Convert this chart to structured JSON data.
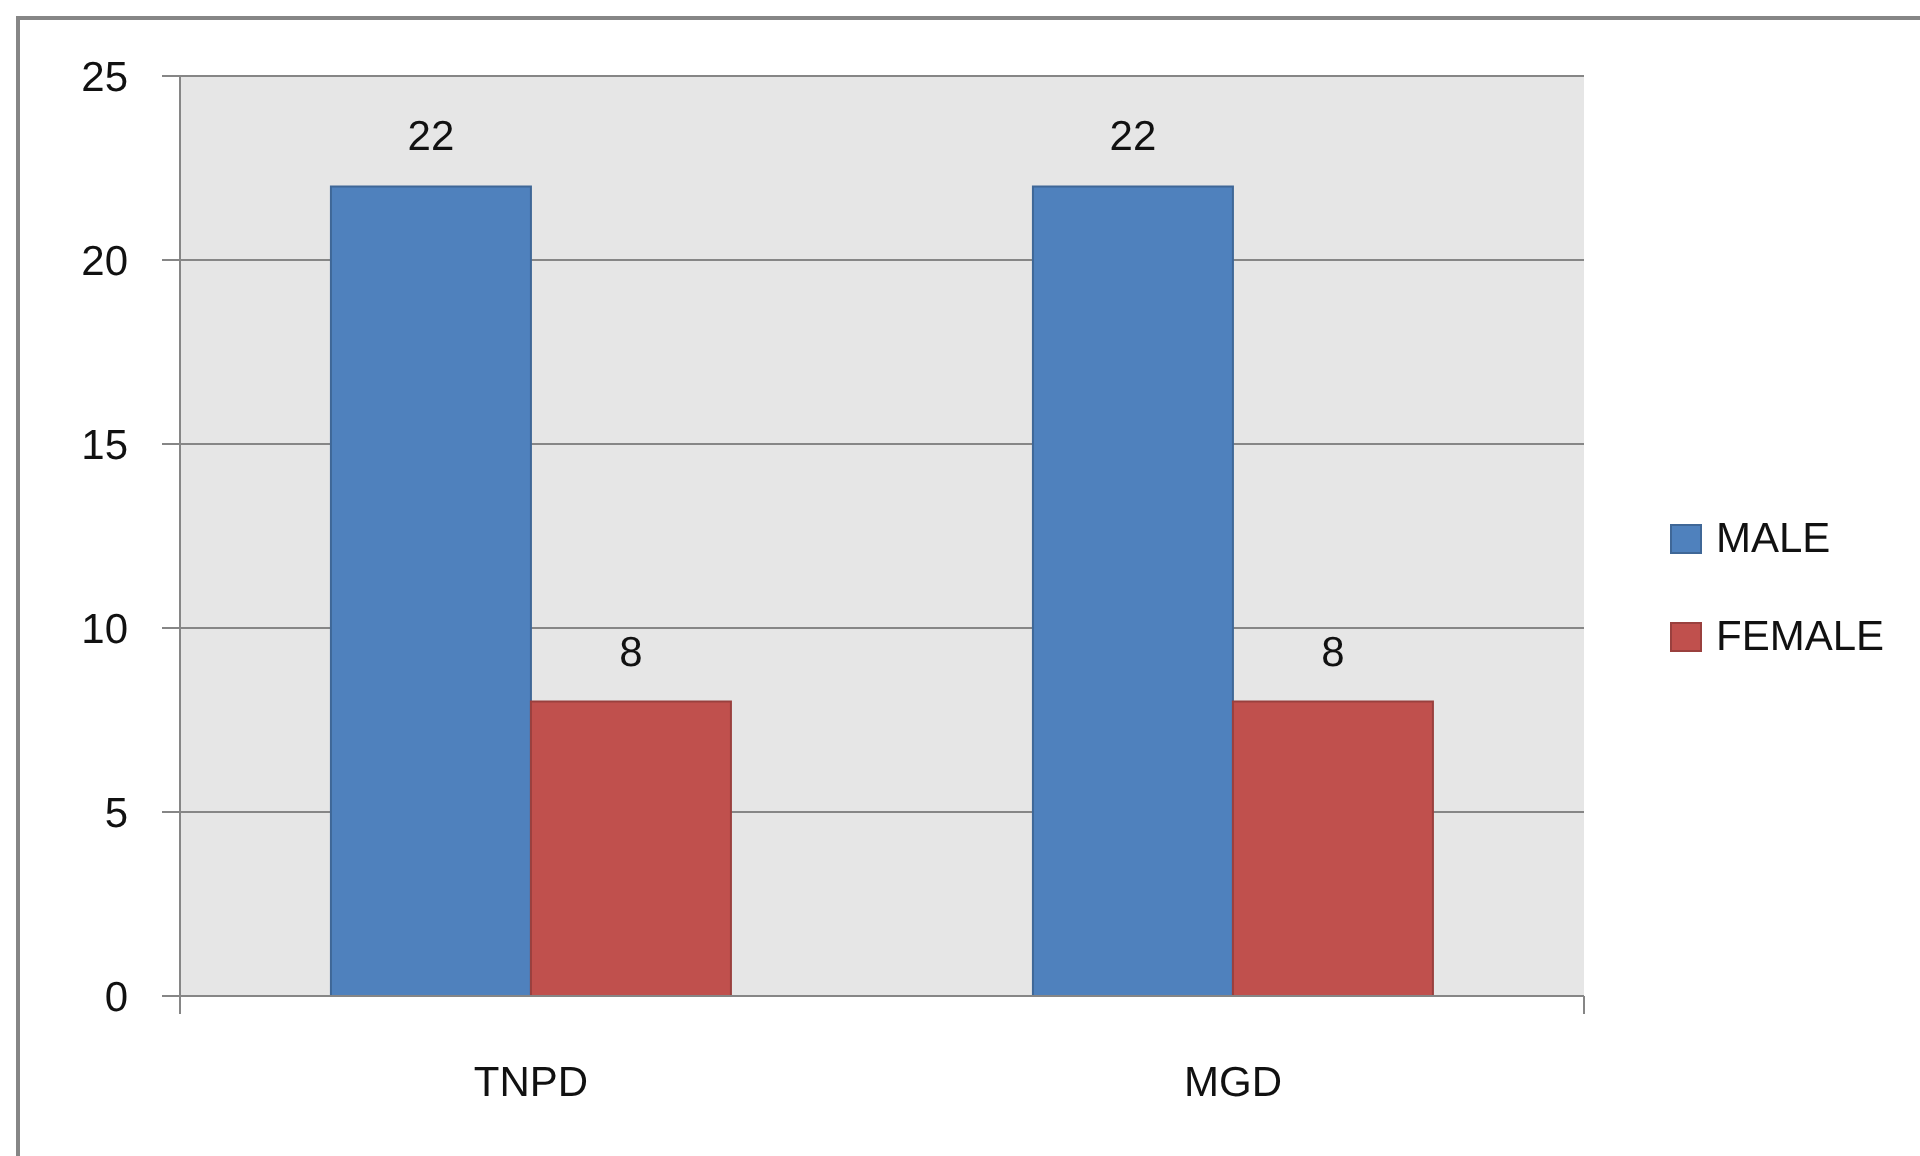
{
  "chart_data": {
    "type": "bar",
    "categories": [
      "TNPD",
      "MGD"
    ],
    "series": [
      {
        "name": "MALE",
        "color": "#4f81bd",
        "values": [
          22,
          22
        ]
      },
      {
        "name": "FEMALE",
        "color": "#c0504d",
        "values": [
          8,
          8
        ]
      }
    ],
    "ylim": [
      0,
      25
    ],
    "yticks": [
      0,
      5,
      10,
      15,
      20,
      25
    ],
    "grid": "y",
    "legend": "right",
    "data_labels": true
  }
}
